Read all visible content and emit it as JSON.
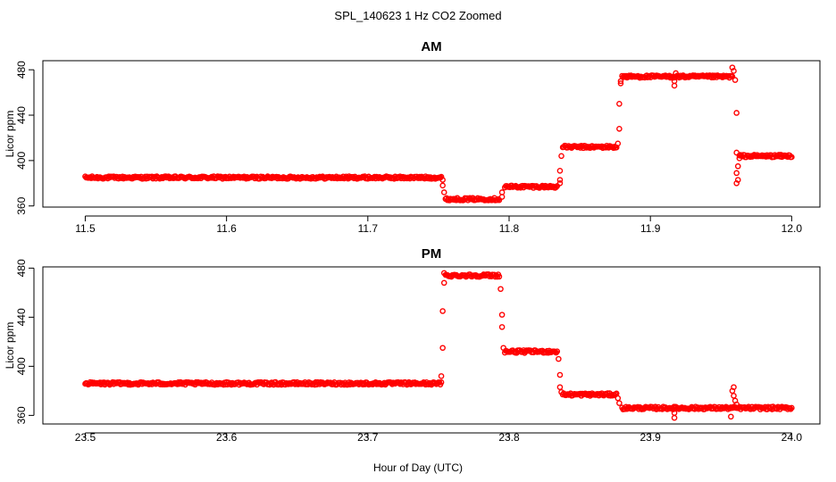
{
  "figure": {
    "suptitle": "SPL_140623  1 Hz CO2 Zoomed",
    "xlabel": "Hour of Day (UTC)"
  },
  "colors": {
    "points": "#ff0000",
    "axes": "#000000",
    "background": "#ffffff"
  },
  "chart_data": [
    {
      "type": "scatter",
      "title": "AM",
      "xlabel": "",
      "ylabel": "Licor ppm",
      "xlim": [
        11.47,
        12.02
      ],
      "ylim": [
        359,
        488
      ],
      "xticks": [
        11.5,
        11.6,
        11.7,
        11.8,
        11.9,
        12.0
      ],
      "xtick_labels": [
        "11.5",
        "11.6",
        "11.7",
        "11.8",
        "11.9",
        "12.0"
      ],
      "yticks": [
        360,
        400,
        440,
        480
      ],
      "ytick_labels": [
        "360",
        "400",
        "440",
        "480"
      ],
      "grid": false,
      "segments": [
        {
          "x_start": 11.5,
          "x_end": 11.752,
          "y": 385
        },
        {
          "x_start": 11.755,
          "x_end": 11.793,
          "y": 366
        },
        {
          "x_start": 11.797,
          "x_end": 11.834,
          "y": 377
        },
        {
          "x_start": 11.838,
          "x_end": 11.876,
          "y": 412
        },
        {
          "x_start": 11.88,
          "x_end": 11.958,
          "y": 474
        },
        {
          "x_start": 11.963,
          "x_end": 12.0,
          "y": 404
        }
      ],
      "transition_points": [
        {
          "x": 11.753,
          "y": 378
        },
        {
          "x": 11.754,
          "y": 372
        },
        {
          "x": 11.753,
          "y": 383
        },
        {
          "x": 11.795,
          "y": 372
        },
        {
          "x": 11.795,
          "y": 368
        },
        {
          "x": 11.836,
          "y": 383
        },
        {
          "x": 11.836,
          "y": 391
        },
        {
          "x": 11.837,
          "y": 404
        },
        {
          "x": 11.836,
          "y": 380
        },
        {
          "x": 11.877,
          "y": 415
        },
        {
          "x": 11.878,
          "y": 428
        },
        {
          "x": 11.878,
          "y": 450
        },
        {
          "x": 11.879,
          "y": 470
        },
        {
          "x": 11.879,
          "y": 468
        },
        {
          "x": 11.917,
          "y": 466
        },
        {
          "x": 11.917,
          "y": 470
        },
        {
          "x": 11.918,
          "y": 477
        },
        {
          "x": 11.958,
          "y": 482
        },
        {
          "x": 11.959,
          "y": 479
        },
        {
          "x": 11.96,
          "y": 471
        },
        {
          "x": 11.961,
          "y": 442
        },
        {
          "x": 11.961,
          "y": 407
        },
        {
          "x": 11.962,
          "y": 395
        },
        {
          "x": 11.961,
          "y": 389
        },
        {
          "x": 11.962,
          "y": 383
        },
        {
          "x": 11.961,
          "y": 380
        },
        {
          "x": 11.963,
          "y": 402
        }
      ]
    },
    {
      "type": "scatter",
      "title": "PM",
      "xlabel": "",
      "ylabel": "Licor ppm",
      "xlim": [
        23.47,
        24.02
      ],
      "ylim": [
        353,
        481
      ],
      "xticks": [
        23.5,
        23.6,
        23.7,
        23.8,
        23.9,
        24.0
      ],
      "xtick_labels": [
        "23.5",
        "23.6",
        "23.7",
        "23.8",
        "23.9",
        "24.0"
      ],
      "yticks": [
        360,
        400,
        440,
        480
      ],
      "ytick_labels": [
        "360",
        "400",
        "440",
        "480"
      ],
      "grid": false,
      "segments": [
        {
          "x_start": 23.5,
          "x_end": 23.752,
          "y": 386
        },
        {
          "x_start": 23.755,
          "x_end": 23.793,
          "y": 474
        },
        {
          "x_start": 23.797,
          "x_end": 23.834,
          "y": 412
        },
        {
          "x_start": 23.838,
          "x_end": 23.876,
          "y": 377
        },
        {
          "x_start": 23.88,
          "x_end": 24.0,
          "y": 366
        }
      ],
      "transition_points": [
        {
          "x": 23.752,
          "y": 392
        },
        {
          "x": 23.753,
          "y": 415
        },
        {
          "x": 23.753,
          "y": 445
        },
        {
          "x": 23.754,
          "y": 468
        },
        {
          "x": 23.754,
          "y": 476
        },
        {
          "x": 23.794,
          "y": 463
        },
        {
          "x": 23.795,
          "y": 442
        },
        {
          "x": 23.795,
          "y": 432
        },
        {
          "x": 23.796,
          "y": 415
        },
        {
          "x": 23.835,
          "y": 406
        },
        {
          "x": 23.836,
          "y": 393
        },
        {
          "x": 23.836,
          "y": 383
        },
        {
          "x": 23.837,
          "y": 379
        },
        {
          "x": 23.877,
          "y": 374
        },
        {
          "x": 23.878,
          "y": 370
        },
        {
          "x": 23.917,
          "y": 358
        },
        {
          "x": 23.917,
          "y": 362
        },
        {
          "x": 23.918,
          "y": 367
        },
        {
          "x": 23.957,
          "y": 359
        },
        {
          "x": 23.958,
          "y": 380
        },
        {
          "x": 23.959,
          "y": 383
        },
        {
          "x": 23.959,
          "y": 376
        },
        {
          "x": 23.96,
          "y": 372
        },
        {
          "x": 23.961,
          "y": 369
        }
      ]
    }
  ]
}
